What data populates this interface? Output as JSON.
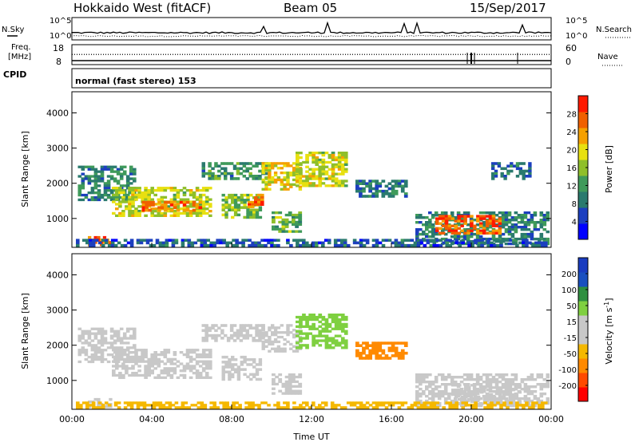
{
  "header": {
    "station": "Hokkaido West (fitACF)",
    "beam": "Beam 05",
    "date": "15/Sep/2017"
  },
  "status_panels": {
    "nsky_label": "N.Sky",
    "nsearch_label": "N.Search",
    "noise_ticks": [
      "10^5",
      "10^0"
    ],
    "freq_label_1": "Freq.",
    "freq_label_2": "[MHz]",
    "freq_ticks": [
      "18",
      "8"
    ],
    "nave_label": "Nave",
    "nave_ticks": [
      "60",
      "0"
    ],
    "cpid_label": "CPID",
    "cpid_text": "normal (fast stereo) 153",
    "nave_value": 34
  },
  "colors": {
    "power_scale": [
      "#0000ff",
      "#1c3fbf",
      "#2a7a6e",
      "#3f9a5a",
      "#8fbf2a",
      "#e8e010",
      "#f5a000",
      "#f06000",
      "#ff1a00"
    ],
    "velocity_scale": [
      "#ff0000",
      "#ff4a00",
      "#ff8a00",
      "#f5b800",
      "#c8c8c8",
      "#c8c8c8",
      "#7fd040",
      "#2f8f40",
      "#1a50c0",
      "#1a3cc0"
    ]
  },
  "chart_data": [
    {
      "type": "heatmap",
      "name_id": "power",
      "xlabel": "",
      "ylabel": "Slant Range [km]",
      "x_ticks": [
        "00:00",
        "04:00",
        "08:00",
        "12:00",
        "16:00",
        "20:00",
        "00:00"
      ],
      "x_range_hours": [
        0,
        24
      ],
      "y_range_km": [
        180,
        4600
      ],
      "y_ticks": [
        1000,
        2000,
        3000,
        4000
      ],
      "colorbar_label": "Power [dB]",
      "colorbar_ticks": [
        4,
        8,
        12,
        16,
        20,
        24,
        28
      ],
      "colorbar_range": [
        0,
        32
      ],
      "regions": [
        {
          "t": [
            0.3,
            3.2
          ],
          "r": [
            1500,
            2500
          ],
          "v": 10
        },
        {
          "t": [
            0.8,
            2.0
          ],
          "r": [
            220,
            500
          ],
          "v": 27
        },
        {
          "t": [
            2.0,
            7.0
          ],
          "r": [
            1050,
            1900
          ],
          "v": 18
        },
        {
          "t": [
            3.5,
            6.5
          ],
          "r": [
            1200,
            1500
          ],
          "v": 26
        },
        {
          "t": [
            6.5,
            9.8
          ],
          "r": [
            2100,
            2600
          ],
          "v": 11
        },
        {
          "t": [
            7.5,
            9.5
          ],
          "r": [
            1000,
            1700
          ],
          "v": 15
        },
        {
          "t": [
            8.8,
            9.6
          ],
          "r": [
            1300,
            1700
          ],
          "v": 27
        },
        {
          "t": [
            9.5,
            11.5
          ],
          "r": [
            1800,
            2600
          ],
          "v": 20
        },
        {
          "t": [
            10.0,
            11.5
          ],
          "r": [
            600,
            1200
          ],
          "v": 14
        },
        {
          "t": [
            11.2,
            13.8
          ],
          "r": [
            1900,
            2900
          ],
          "v": 18
        },
        {
          "t": [
            14.2,
            16.8
          ],
          "r": [
            1600,
            2100
          ],
          "v": 9
        },
        {
          "t": [
            17.2,
            23.9
          ],
          "r": [
            250,
            1200
          ],
          "v": 10
        },
        {
          "t": [
            18.2,
            21.5
          ],
          "r": [
            550,
            1100
          ],
          "v": 27
        },
        {
          "t": [
            21.0,
            23.0
          ],
          "r": [
            2100,
            2600
          ],
          "v": 8
        },
        {
          "t": [
            0.2,
            23.8
          ],
          "r": [
            200,
            420
          ],
          "v": 7
        }
      ]
    },
    {
      "type": "heatmap",
      "name_id": "velocity",
      "xlabel": "Time UT",
      "ylabel": "Slant Range [km]",
      "x_ticks": [
        "00:00",
        "04:00",
        "08:00",
        "12:00",
        "16:00",
        "20:00",
        "00:00"
      ],
      "x_range_hours": [
        0,
        24
      ],
      "y_range_km": [
        180,
        4600
      ],
      "y_ticks": [
        1000,
        2000,
        3000,
        4000
      ],
      "colorbar_label": "Velocity [m s^-1]",
      "colorbar_ticks": [
        "-200",
        "-100",
        "-50",
        "-15",
        "15",
        "50",
        "100",
        "200"
      ],
      "colorbar_range": [
        -250,
        250
      ],
      "regions": [
        {
          "t": [
            0.3,
            3.2
          ],
          "r": [
            1500,
            2500
          ],
          "v": 0
        },
        {
          "t": [
            0.8,
            2.0
          ],
          "r": [
            220,
            500
          ],
          "v": 0
        },
        {
          "t": [
            2.0,
            7.0
          ],
          "r": [
            1050,
            1900
          ],
          "v": 0
        },
        {
          "t": [
            6.5,
            9.8
          ],
          "r": [
            2100,
            2600
          ],
          "v": 5
        },
        {
          "t": [
            7.5,
            9.5
          ],
          "r": [
            1000,
            1700
          ],
          "v": 0
        },
        {
          "t": [
            9.5,
            11.5
          ],
          "r": [
            1800,
            2600
          ],
          "v": -5
        },
        {
          "t": [
            10.0,
            11.5
          ],
          "r": [
            600,
            1200
          ],
          "v": 0
        },
        {
          "t": [
            11.2,
            13.8
          ],
          "r": [
            1900,
            2900
          ],
          "v": 20
        },
        {
          "t": [
            14.2,
            16.8
          ],
          "r": [
            1600,
            2100
          ],
          "v": -60
        },
        {
          "t": [
            17.2,
            23.9
          ],
          "r": [
            250,
            1200
          ],
          "v": 0
        },
        {
          "t": [
            19.0,
            22.5
          ],
          "r": [
            300,
            900
          ],
          "v": 5
        },
        {
          "t": [
            0.2,
            23.8
          ],
          "r": [
            200,
            400
          ],
          "v": -30
        }
      ]
    }
  ]
}
